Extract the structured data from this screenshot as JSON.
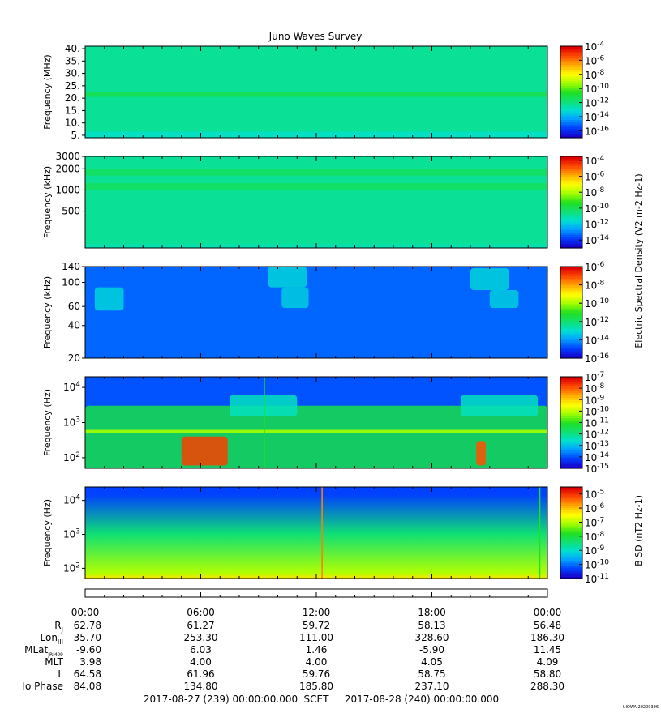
{
  "figure": {
    "title": "Juno Waves Survey",
    "footer_left": "2017-08-27 (239) 00:00:00.000",
    "footer_mid": "SCET",
    "footer_right": "2017-08-28 (240) 00:00:00.000",
    "credit": "UIOWA 20200306"
  },
  "colors": {
    "colormap": [
      "#1a00c8",
      "#0040ff",
      "#00a0ff",
      "#00e0d0",
      "#10e070",
      "#20e020",
      "#a0ff00",
      "#ffff00",
      "#ffb000",
      "#ff5000",
      "#e00000"
    ]
  },
  "shared_labels": {
    "electric_colorbar": "Electric Spectral Density (V2 m-2 Hz-1)",
    "magnetic_colorbar": "B SD (nT2 Hz-1)"
  },
  "chart_data": [
    {
      "type": "heatmap",
      "title": "Juno Waves Survey",
      "xlabel": "",
      "ylabel": "Frequency (MHz)",
      "xlim": [
        "2017-08-27 00:00",
        "2017-08-28 00:00"
      ],
      "ylim": [
        4,
        41
      ],
      "yscale": "linear",
      "yticks": [
        {
          "v": 5,
          "label": "5."
        },
        {
          "v": 10,
          "label": "10."
        },
        {
          "v": 15,
          "label": "15."
        },
        {
          "v": 20,
          "label": "20."
        },
        {
          "v": 25,
          "label": "25."
        },
        {
          "v": 30,
          "label": "30."
        },
        {
          "v": 35,
          "label": "35."
        },
        {
          "v": 40,
          "label": "40."
        }
      ],
      "colorbar": {
        "min_exp": -17,
        "max_exp": -4,
        "ticks": [
          -16,
          -14,
          -12,
          -10,
          -8,
          -6,
          -4
        ],
        "label": ""
      },
      "background_level": 0.36,
      "features": [
        {
          "kind": "hband",
          "f0": 20.5,
          "f1": 22.5,
          "level": 0.44
        },
        {
          "kind": "hband",
          "f0": 4,
          "f1": 6.5,
          "level": 0.31
        }
      ]
    },
    {
      "type": "heatmap",
      "xlabel": "",
      "ylabel": "Frequency (kHz)",
      "xlim": [
        "2017-08-27 00:00",
        "2017-08-28 00:00"
      ],
      "ylim": [
        150,
        3000
      ],
      "yscale": "log",
      "yticks": [
        {
          "v": 500,
          "label": "500"
        },
        {
          "v": 1000,
          "label": "1000"
        },
        {
          "v": 2000,
          "label": "2000"
        },
        {
          "v": 3000,
          "label": "3000"
        }
      ],
      "colorbar": {
        "min_exp": -15,
        "max_exp": -3.5,
        "ticks": [
          -14,
          -12,
          -10,
          -8,
          -6,
          -4
        ],
        "label": "Electric Spectral Density (V2 m-2 Hz-1)"
      },
      "background_level": 0.36,
      "features": [
        {
          "kind": "hband",
          "f0": 1600,
          "f1": 2000,
          "level": 0.42
        },
        {
          "kind": "hband",
          "f0": 1000,
          "f1": 1250,
          "level": 0.42
        },
        {
          "kind": "hband",
          "f0": 150,
          "f1": 170,
          "level": 0.33
        }
      ]
    },
    {
      "type": "heatmap",
      "xlabel": "",
      "ylabel": "Frequency (kHz)",
      "xlim": [
        "2017-08-27 00:00",
        "2017-08-28 00:00"
      ],
      "ylim": [
        20,
        140
      ],
      "yscale": "log",
      "yticks": [
        {
          "v": 20,
          "label": "20"
        },
        {
          "v": 40,
          "label": "40"
        },
        {
          "v": 60,
          "label": "60"
        },
        {
          "v": 100,
          "label": "100"
        },
        {
          "v": 140,
          "label": "140"
        }
      ],
      "colorbar": {
        "min_exp": -16,
        "max_exp": -6,
        "ticks": [
          -16,
          -14,
          -12,
          -10,
          -8,
          -6
        ],
        "label": ""
      },
      "background_level": 0.14,
      "features": [
        {
          "kind": "blob",
          "t0": 0.5,
          "t1": 2.0,
          "f0": 55,
          "f1": 90,
          "level": 0.28
        },
        {
          "kind": "blob",
          "t0": 9.5,
          "t1": 11.5,
          "f0": 90,
          "f1": 140,
          "level": 0.28
        },
        {
          "kind": "blob",
          "t0": 10.2,
          "t1": 11.6,
          "f0": 58,
          "f1": 90,
          "level": 0.27
        },
        {
          "kind": "blob",
          "t0": 20.0,
          "t1": 22.0,
          "f0": 85,
          "f1": 135,
          "level": 0.28
        },
        {
          "kind": "blob",
          "t0": 21.0,
          "t1": 22.5,
          "f0": 58,
          "f1": 85,
          "level": 0.27
        }
      ]
    },
    {
      "type": "heatmap",
      "xlabel": "",
      "ylabel": "Frequency (Hz)",
      "xlim": [
        "2017-08-27 00:00",
        "2017-08-28 00:00"
      ],
      "ylim": [
        50,
        20000
      ],
      "yscale": "log",
      "yticks": [
        {
          "v": 100,
          "label": "10^2"
        },
        {
          "v": 1000,
          "label": "10^3"
        },
        {
          "v": 10000,
          "label": "10^4"
        }
      ],
      "colorbar": {
        "min_exp": -15,
        "max_exp": -7,
        "ticks": [
          -15,
          -14,
          -13,
          -12,
          -11,
          -10,
          -9,
          -8,
          -7
        ],
        "label": ""
      },
      "background_level": 0.12,
      "features": [
        {
          "kind": "blob",
          "t0": 0,
          "t1": 24,
          "f0": 50,
          "f1": 3000,
          "level": 0.45
        },
        {
          "kind": "blob",
          "t0": 7.5,
          "t1": 11.0,
          "f0": 1500,
          "f1": 6000,
          "level": 0.32
        },
        {
          "kind": "blob",
          "t0": 19.5,
          "t1": 23.5,
          "f0": 1500,
          "f1": 6000,
          "level": 0.32
        },
        {
          "kind": "blob",
          "t0": 5.0,
          "t1": 7.4,
          "f0": 60,
          "f1": 400,
          "level": 0.92
        },
        {
          "kind": "blob",
          "t0": 20.3,
          "t1": 20.8,
          "f0": 60,
          "f1": 300,
          "level": 0.9
        },
        {
          "kind": "hband",
          "f0": 500,
          "f1": 620,
          "level": 0.6
        },
        {
          "kind": "vline",
          "t": 9.3,
          "level": 0.5
        }
      ]
    },
    {
      "type": "heatmap",
      "xlabel": "",
      "ylabel": "Frequency (Hz)",
      "xlim": [
        "2017-08-27 00:00",
        "2017-08-28 00:00"
      ],
      "ylim": [
        50,
        25000
      ],
      "yscale": "log",
      "yticks": [
        {
          "v": 100,
          "label": "10^2"
        },
        {
          "v": 1000,
          "label": "10^3"
        },
        {
          "v": 10000,
          "label": "10^4"
        }
      ],
      "colorbar": {
        "min_exp": -11,
        "max_exp": -4.5,
        "ticks": [
          -11,
          -10,
          -9,
          -8,
          -7,
          -6,
          -5
        ],
        "label": "B SD (nT2 Hz-1)"
      },
      "background_level": 0.1,
      "features": [
        {
          "kind": "gradient",
          "f_hi": 15000,
          "f_lo": 70,
          "level_hi": 0.1,
          "level_lo": 0.62
        },
        {
          "kind": "vline",
          "t": 12.3,
          "level": 0.85
        },
        {
          "kind": "vline",
          "t": 23.6,
          "level": 0.5
        }
      ]
    }
  ],
  "orbit_table": {
    "times": [
      "00:00",
      "06:00",
      "12:00",
      "18:00",
      "00:00"
    ],
    "rows": [
      {
        "label": "R",
        "sub": "J",
        "values": [
          "62.78",
          "61.27",
          "59.72",
          "58.13",
          "56.48"
        ]
      },
      {
        "label": "Lon",
        "sub": "III",
        "values": [
          "35.70",
          "253.30",
          "111.00",
          "328.60",
          "186.30"
        ]
      },
      {
        "label": "MLat",
        "sub": "JRM09",
        "values": [
          "-9.60",
          "6.03",
          "1.46",
          "-5.90",
          "11.45"
        ]
      },
      {
        "label": "MLT",
        "sub": "",
        "values": [
          "3.98",
          "4.00",
          "4.00",
          "4.05",
          "4.09"
        ]
      },
      {
        "label": "L",
        "sub": "",
        "values": [
          "64.58",
          "61.96",
          "59.76",
          "58.75",
          "58.80"
        ]
      },
      {
        "label": "Io Phase",
        "sub": "",
        "values": [
          "84.08",
          "134.80",
          "185.80",
          "237.10",
          "288.30"
        ]
      }
    ]
  }
}
